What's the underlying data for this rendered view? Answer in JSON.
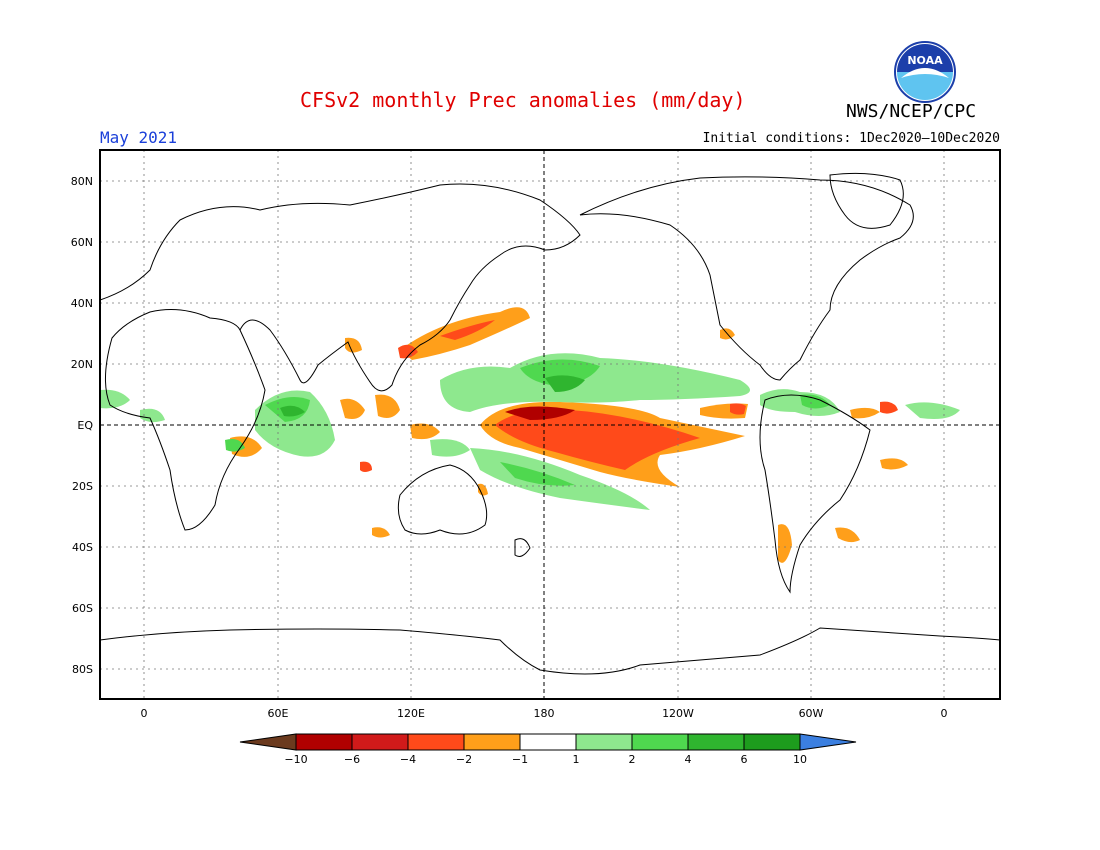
{
  "title": "CFSv2 monthly Prec anomalies (mm/day)",
  "organization": "NWS/NCEP/CPC",
  "logo_text": "NOAA",
  "valid_month": "May 2021",
  "initial_conditions": "Initial conditions: 1Dec2020–10Dec2020",
  "lat_labels": [
    "80N",
    "60N",
    "40N",
    "20N",
    "EQ",
    "20S",
    "40S",
    "60S",
    "80S"
  ],
  "lon_labels": [
    "0",
    "60E",
    "120E",
    "180",
    "120W",
    "60W",
    "0"
  ],
  "colorbar": {
    "tick_labels": [
      "−10",
      "−6",
      "−4",
      "−2",
      "−1",
      "1",
      "2",
      "4",
      "6",
      "10"
    ],
    "colors": [
      "#6b3a1e",
      "#b00000",
      "#d11a1a",
      "#ff4a1a",
      "#ff9f1a",
      "#ffffff",
      "#8ee88e",
      "#4fd84f",
      "#2fb52f",
      "#1d9c1d",
      "#3b7fe0"
    ]
  }
}
